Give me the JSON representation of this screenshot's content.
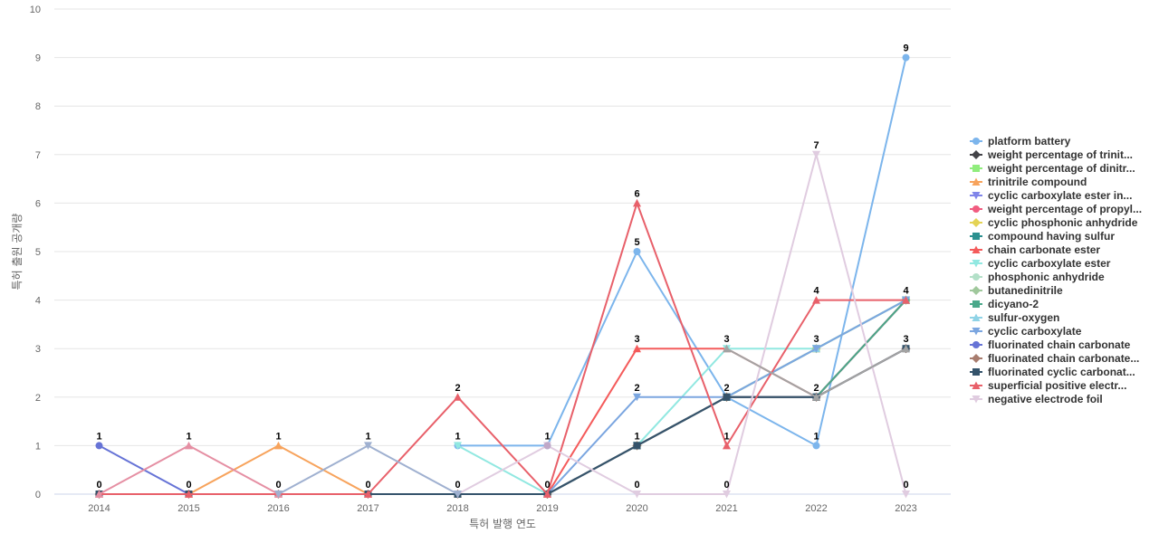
{
  "chart_data": {
    "type": "line",
    "x": [
      "2014",
      "2015",
      "2016",
      "2017",
      "2018",
      "2019",
      "2020",
      "2021",
      "2022",
      "2023"
    ],
    "xlabel": "특허 발행 연도",
    "ylabel": "특허 출원 공개량",
    "ylim": [
      0,
      10
    ],
    "yticks": [
      0,
      1,
      2,
      3,
      4,
      5,
      6,
      7,
      8,
      9,
      10
    ],
    "grid": true,
    "legend_position": "right",
    "series": [
      {
        "name": "platform battery",
        "color": "#7cb5ec",
        "marker": "circle",
        "values": [
          null,
          null,
          null,
          null,
          1,
          1,
          5,
          2,
          1,
          9
        ]
      },
      {
        "name": "weight percentage of trinit...",
        "color": "#434348",
        "marker": "diamond",
        "values": [
          null,
          null,
          null,
          null,
          null,
          0,
          1,
          2,
          2,
          3
        ]
      },
      {
        "name": "weight percentage of dinitr...",
        "color": "#90ed7d",
        "marker": "square",
        "values": [
          null,
          null,
          null,
          null,
          null,
          0,
          1,
          2,
          3,
          4
        ]
      },
      {
        "name": "trinitrile compound",
        "color": "#f7a35c",
        "marker": "triangle",
        "values": [
          0,
          0,
          1,
          0,
          0,
          0,
          1,
          2,
          3,
          4
        ]
      },
      {
        "name": "cyclic carboxylate ester in...",
        "color": "#8085e9",
        "marker": "triangle-down",
        "values": [
          null,
          null,
          null,
          null,
          null,
          0,
          1,
          2,
          2,
          4
        ]
      },
      {
        "name": "weight percentage of propyl...",
        "color": "#f15c80",
        "marker": "circle",
        "values": [
          null,
          null,
          null,
          null,
          null,
          0,
          1,
          2,
          2,
          4
        ]
      },
      {
        "name": "cyclic phosphonic anhydride",
        "color": "#e4d354",
        "marker": "diamond",
        "values": [
          null,
          null,
          null,
          null,
          null,
          0,
          1,
          2,
          3,
          4
        ]
      },
      {
        "name": "compound having sulfur",
        "color": "#2b908f",
        "marker": "square",
        "values": [
          null,
          null,
          null,
          null,
          null,
          0,
          1,
          2,
          2,
          4
        ]
      },
      {
        "name": "chain carbonate ester",
        "color": "#f45b5b",
        "marker": "triangle",
        "values": [
          null,
          null,
          null,
          null,
          null,
          0,
          3,
          3,
          2,
          4
        ]
      },
      {
        "name": "cyclic carboxylate ester",
        "color": "#91e8e1",
        "marker": "triangle-down",
        "values": [
          null,
          null,
          null,
          null,
          1,
          0,
          1,
          3,
          3,
          4
        ]
      },
      {
        "name": "phosphonic anhydride",
        "color": "#b3e0c8",
        "marker": "circle",
        "values": [
          null,
          null,
          null,
          null,
          null,
          0,
          1,
          2,
          3,
          4
        ]
      },
      {
        "name": "butanedinitrile",
        "color": "#a0c89c",
        "marker": "diamond",
        "values": [
          null,
          null,
          null,
          null,
          null,
          0,
          1,
          2,
          3,
          4
        ]
      },
      {
        "name": "dicyano-2",
        "color": "#4aa88a",
        "marker": "square",
        "values": [
          null,
          null,
          null,
          null,
          null,
          0,
          1,
          2,
          2,
          4
        ]
      },
      {
        "name": "sulfur-oxygen",
        "color": "#8fd3e6",
        "marker": "triangle",
        "values": [
          null,
          null,
          null,
          null,
          null,
          0,
          1,
          2,
          3,
          4
        ]
      },
      {
        "name": "cyclic carboxylate",
        "color": "#7ba6e0",
        "marker": "triangle-down",
        "values": [
          null,
          null,
          null,
          null,
          null,
          0,
          2,
          2,
          3,
          4
        ]
      },
      {
        "name": "fluorinated chain carbonate",
        "color": "#6673d6",
        "marker": "circle",
        "values": [
          1,
          0,
          0,
          0,
          0,
          0,
          1,
          2,
          2,
          3
        ]
      },
      {
        "name": "fluorinated chain carbonate...",
        "color": "#a87c6e",
        "marker": "diamond",
        "values": [
          0,
          0,
          0,
          0,
          0,
          0,
          1,
          2,
          2,
          3
        ]
      },
      {
        "name": "fluorinated cyclic carbonat...",
        "color": "#34536b",
        "marker": "square",
        "values": [
          0,
          0,
          0,
          0,
          0,
          0,
          1,
          2,
          2,
          3
        ]
      },
      {
        "name": "superficial positive electr...",
        "color": "#e8606a",
        "marker": "triangle",
        "values": [
          0,
          0,
          0,
          0,
          2,
          0,
          6,
          1,
          4,
          4
        ]
      },
      {
        "name": "negative electrode foil",
        "color": "#e0cce0",
        "marker": "triangle-down",
        "values": [
          null,
          null,
          null,
          null,
          0,
          1,
          0,
          0,
          7,
          0
        ]
      },
      {
        "name": "",
        "color": "#e58fa3",
        "marker": "triangle",
        "values": [
          0,
          1,
          0,
          null,
          null,
          null,
          null,
          null,
          null,
          null
        ]
      },
      {
        "name": "",
        "color": "#9fb0d0",
        "marker": "triangle-down",
        "values": [
          null,
          null,
          0,
          1,
          0,
          null,
          null,
          null,
          null,
          null
        ]
      },
      {
        "name": "",
        "color": "#c0a8c8",
        "marker": "circle",
        "values": [
          null,
          null,
          null,
          null,
          null,
          1,
          null,
          null,
          null,
          null
        ]
      },
      {
        "name": "",
        "color": "#a3a3a3",
        "marker": "triangle",
        "values": [
          null,
          null,
          null,
          null,
          null,
          null,
          null,
          3,
          2,
          3
        ]
      }
    ],
    "data_labels": [
      {
        "x": "2014",
        "y": 1,
        "text": "1"
      },
      {
        "x": "2014",
        "y": 0,
        "text": "0"
      },
      {
        "x": "2015",
        "y": 1,
        "text": "1"
      },
      {
        "x": "2015",
        "y": 0,
        "text": "0"
      },
      {
        "x": "2016",
        "y": 1,
        "text": "1"
      },
      {
        "x": "2016",
        "y": 0,
        "text": "0"
      },
      {
        "x": "2017",
        "y": 1,
        "text": "1"
      },
      {
        "x": "2017",
        "y": 0,
        "text": "0"
      },
      {
        "x": "2018",
        "y": 2,
        "text": "2"
      },
      {
        "x": "2018",
        "y": 1,
        "text": "1"
      },
      {
        "x": "2018",
        "y": 0,
        "text": "0"
      },
      {
        "x": "2019",
        "y": 1,
        "text": "1"
      },
      {
        "x": "2019",
        "y": 0,
        "text": "0"
      },
      {
        "x": "2020",
        "y": 6,
        "text": "6"
      },
      {
        "x": "2020",
        "y": 5,
        "text": "5"
      },
      {
        "x": "2020",
        "y": 3,
        "text": "3"
      },
      {
        "x": "2020",
        "y": 2,
        "text": "2"
      },
      {
        "x": "2020",
        "y": 1,
        "text": "1"
      },
      {
        "x": "2020",
        "y": 0,
        "text": "0"
      },
      {
        "x": "2021",
        "y": 3,
        "text": "3"
      },
      {
        "x": "2021",
        "y": 2,
        "text": "2"
      },
      {
        "x": "2021",
        "y": 1,
        "text": "1"
      },
      {
        "x": "2021",
        "y": 0,
        "text": "0"
      },
      {
        "x": "2022",
        "y": 7,
        "text": "7"
      },
      {
        "x": "2022",
        "y": 4,
        "text": "4"
      },
      {
        "x": "2022",
        "y": 3,
        "text": "3"
      },
      {
        "x": "2022",
        "y": 2,
        "text": "2"
      },
      {
        "x": "2022",
        "y": 1,
        "text": "1"
      },
      {
        "x": "2023",
        "y": 9,
        "text": "9"
      },
      {
        "x": "2023",
        "y": 4,
        "text": "4"
      },
      {
        "x": "2023",
        "y": 3,
        "text": "3"
      },
      {
        "x": "2023",
        "y": 0,
        "text": "0"
      }
    ]
  }
}
